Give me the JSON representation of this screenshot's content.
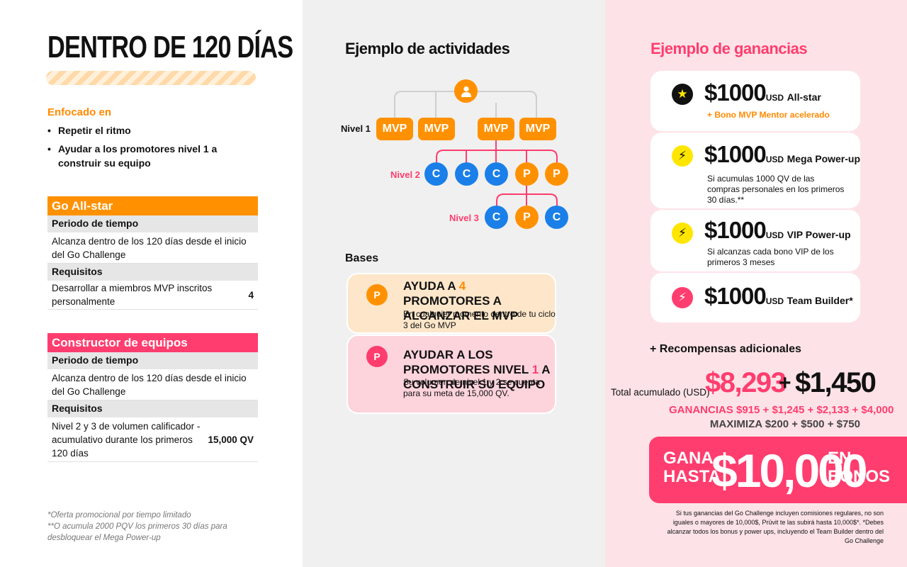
{
  "left": {
    "title": "DENTRO DE 120 DÍAS",
    "focus": {
      "heading": "Enfocado en",
      "items": [
        "Repetir el ritmo",
        "Ayudar a los promotores nivel 1 a construir su equipo"
      ]
    },
    "allstar": {
      "header": "Go All-star",
      "period_label": "Periodo de tiempo",
      "period_text": "Alcanza dentro de los 120 días desde el inicio del Go Challenge",
      "req_label": "Requisitos",
      "req_text": "Desarrollar a miembros MVP inscritos personalmente",
      "req_value": "4"
    },
    "builder": {
      "header": "Constructor de equipos",
      "period_label": "Periodo de tiempo",
      "period_text": "Alcanza dentro de los 120 días desde el inicio del Go Challenge",
      "req_label": "Requisitos",
      "req_text": "Nivel 2 y 3 de volumen calificador - acumulativo durante los primeros 120 días",
      "req_value": "15,000 QV"
    },
    "footnote1": "*Oferta promocional por tiempo limitado",
    "footnote2": "**O acumula 2000 PQV los primeros 30 días para desbloquear el Mega Power-up"
  },
  "mid": {
    "title": "Ejemplo de actividades",
    "level1": "Nivel 1",
    "level2": "Nivel 2",
    "level3": "Nivel 3",
    "mvp_label": "MVP",
    "c_label": "C",
    "p_label": "P",
    "bases": "Bases",
    "card1": {
      "icon": "P",
      "title_a": "Ayuda a ",
      "title_num": "4",
      "title_b": " promotores a alcanzar el MVP",
      "desc": "En cualquier momento dentro de tu ciclo 3 del Go MVP"
    },
    "card2": {
      "icon": "P",
      "title_a": "Ayudar a los promotores nivel ",
      "title_num": "1",
      "title_b": " a construir su equipo",
      "desc": "Su volumen de nivel 1 y 2 se cuenta para su meta de 15,000 QV."
    }
  },
  "right": {
    "title": "Ejemplo de ganancias",
    "rewards": [
      {
        "amount": "$1000",
        "currency": "USD",
        "name": "All-star",
        "sub": "+ Bono MVP Mentor acelerado"
      },
      {
        "amount": "$1000",
        "currency": "USD",
        "name": "Mega Power-up",
        "sub": "Si acumulas 1000 QV de las compras personales en los primeros 30 días.**"
      },
      {
        "amount": "$1000",
        "currency": "USD",
        "name": "VIP Power-up",
        "sub": "Si alcanzas cada bono VIP de los primeros 3 meses"
      },
      {
        "amount": "$1000",
        "currency": "USD",
        "name": "Team Builder*",
        "sub": ""
      }
    ],
    "extra": "+ Recompensas adicionales",
    "total_label": "Total acumulado (USD)",
    "total_a": "$8,293",
    "total_plus": "+",
    "total_b": "$1,450",
    "ganancias": "GANANCIAS $915 + $1,245 + $2,133  + $4,000",
    "maximiza": "MAXIMIZA $200 + $500 + $750",
    "banner_left": "GANA HASTA",
    "banner_amount": "$10,000",
    "banner_right": "EN BONOS",
    "disclaimer": "Si tus ganancias del Go Challenge incluyen comisiones regulares, no son iguales o mayores de 10,000$, Prüvit te las subirá hasta 10,000$*. *Debes alcanzar todos los bonus y power ups, incluyendo el Team Builder dentro del Go Challenge"
  },
  "colors": {
    "orange": "#ff9100",
    "pink": "#ff3d6e",
    "blue": "#1a7fe8",
    "peach_card": "#fde6c9",
    "pink_card": "#fdd3dc"
  }
}
